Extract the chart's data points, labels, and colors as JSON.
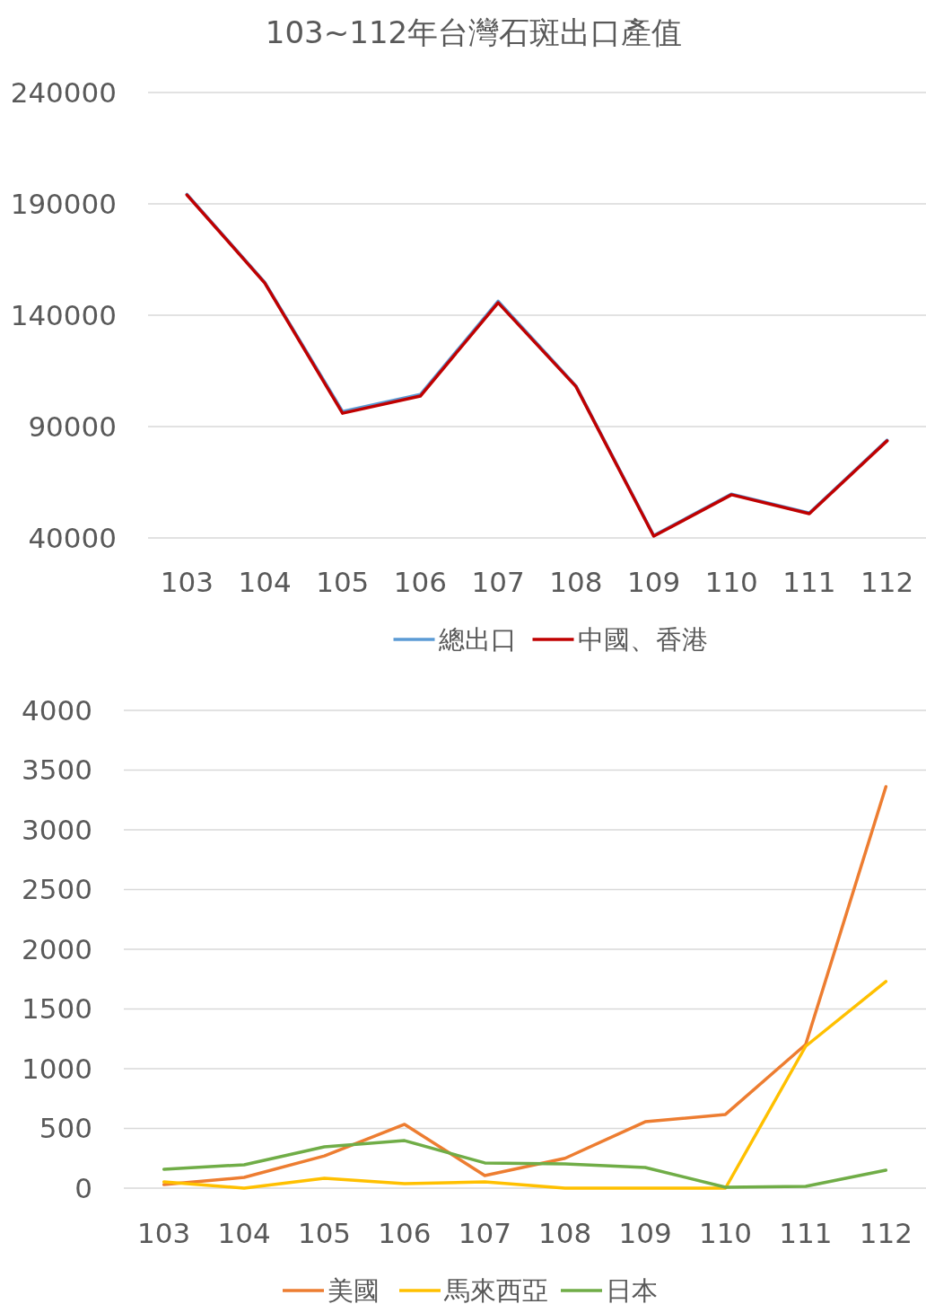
{
  "chart_data": [
    {
      "type": "line",
      "title": "103~112年台灣石斑出口產值",
      "categories": [
        "103",
        "104",
        "105",
        "106",
        "107",
        "108",
        "109",
        "110",
        "111",
        "112"
      ],
      "series": [
        {
          "name": "總出口",
          "color": "#5b9bd5",
          "values": [
            194300,
            154800,
            96800,
            104400,
            146300,
            108300,
            41100,
            59700,
            51200,
            83900
          ]
        },
        {
          "name": "中國、香港",
          "color": "#c00000",
          "values": [
            194000,
            154500,
            96000,
            103700,
            145600,
            108000,
            40800,
            59400,
            50900,
            83600
          ]
        }
      ],
      "ylim": [
        40000,
        240000
      ],
      "yticks": [
        40000,
        90000,
        140000,
        190000,
        240000
      ],
      "grid": "y",
      "legend": "bottom",
      "line_style": "solid",
      "marker": "none"
    },
    {
      "type": "line",
      "categories": [
        "103",
        "104",
        "105",
        "106",
        "107",
        "108",
        "109",
        "110",
        "111",
        "112"
      ],
      "series": [
        {
          "name": "美國",
          "color": "#ed7d31",
          "values": [
            30,
            90,
            270,
            534,
            105,
            250,
            556,
            617,
            1203,
            3361
          ]
        },
        {
          "name": "馬來西亞",
          "color": "#ffc000",
          "values": [
            53,
            0,
            83,
            38,
            53,
            0,
            0,
            0,
            1188,
            1730
          ]
        },
        {
          "name": "日本",
          "color": "#70ad47",
          "values": [
            158,
            196,
            346,
            398,
            211,
            203,
            173,
            8,
            15,
            150
          ]
        }
      ],
      "ylim": [
        0,
        4000
      ],
      "yticks": [
        0,
        500,
        1000,
        1500,
        2000,
        2500,
        3000,
        3500,
        4000
      ],
      "grid": "y",
      "legend": "bottom",
      "line_style": "solid",
      "marker": "none"
    }
  ]
}
